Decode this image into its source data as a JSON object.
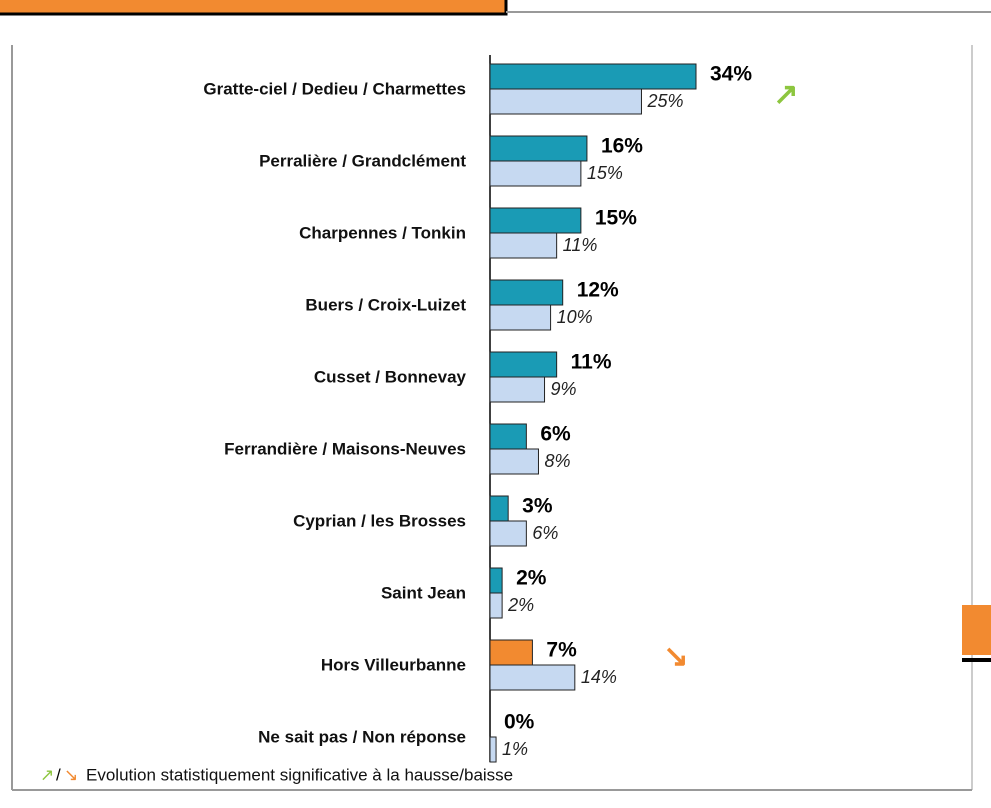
{
  "chart_data": {
    "type": "hbar",
    "categories": [
      "Gratte-ciel / Dedieu / Charmettes",
      "Perralière / Grandclément",
      "Charpennes / Tonkin",
      "Buers / Croix-Luizet",
      "Cusset / Bonnevay",
      "Ferrandière / Maisons-Neuves",
      "Cyprian / les Brosses",
      "Saint Jean",
      "Hors Villeurbanne",
      "Ne sait pas / Non réponse"
    ],
    "series": [
      {
        "colors": [
          "#1a9bb5",
          "#1a9bb5",
          "#1a9bb5",
          "#1a9bb5",
          "#1a9bb5",
          "#1a9bb5",
          "#1a9bb5",
          "#1a9bb5",
          "#f28a30",
          "#1a9bb5"
        ],
        "values": [
          34,
          16,
          15,
          12,
          11,
          6,
          3,
          2,
          7,
          0
        ],
        "value_labels": [
          "34%",
          "16%",
          "15%",
          "12%",
          "11%",
          "6%",
          "3%",
          "2%",
          "7%",
          "0%"
        ]
      },
      {
        "color": "#c6d9f1",
        "values": [
          25,
          15,
          11,
          10,
          9,
          8,
          6,
          2,
          14,
          1
        ],
        "value_labels": [
          "25%",
          "15%",
          "11%",
          "10%",
          "9%",
          "8%",
          "6%",
          "2%",
          "14%",
          "1%"
        ]
      }
    ],
    "significance_markers": [
      "↗",
      null,
      null,
      null,
      null,
      null,
      null,
      null,
      "↘",
      null
    ],
    "up_color": "#8dc63f",
    "down_color": "#f28a30",
    "footnote": {
      "up": "↗",
      "separator": "/",
      "down": "↘",
      "text": "Evolution statistiquement significative à la hausse/baisse"
    }
  }
}
